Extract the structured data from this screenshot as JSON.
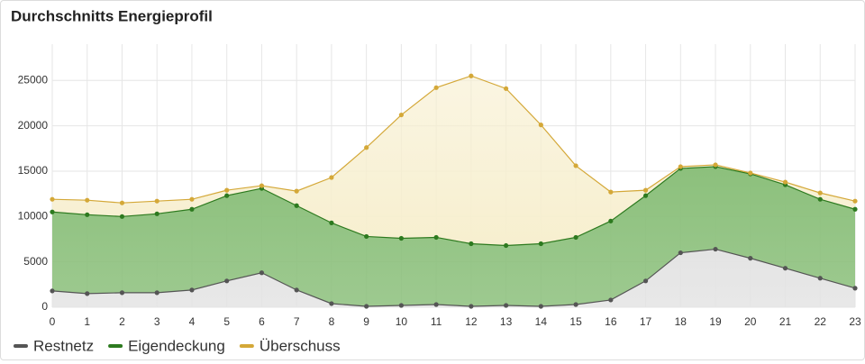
{
  "chart_data": {
    "type": "stacked-area",
    "title": "Durchschnitts Energieprofil",
    "x": [
      0,
      1,
      2,
      3,
      4,
      5,
      6,
      7,
      8,
      9,
      10,
      11,
      12,
      13,
      14,
      15,
      16,
      17,
      18,
      19,
      20,
      21,
      22,
      23
    ],
    "xlim": [
      0,
      23
    ],
    "xticks": [
      0,
      1,
      2,
      3,
      4,
      5,
      6,
      7,
      8,
      9,
      10,
      11,
      12,
      13,
      14,
      15,
      16,
      17,
      18,
      19,
      20,
      21,
      22,
      23
    ],
    "ylim": [
      0,
      29000
    ],
    "yticks": [
      0,
      5000,
      10000,
      15000,
      20000,
      25000
    ],
    "grid": true,
    "legend": "bottom-left",
    "series": [
      {
        "name": "Restnetz",
        "color": "#555555",
        "fill": "#e4e4e4",
        "values": [
          1800,
          1500,
          1600,
          1600,
          1900,
          2900,
          3800,
          1900,
          400,
          100,
          200,
          300,
          100,
          200,
          100,
          300,
          800,
          2900,
          6000,
          6400,
          5400,
          4300,
          3200,
          2100
        ]
      },
      {
        "name": "Eigendeckung",
        "color": "#2d7a1f",
        "fill": "#8cc07c",
        "values": [
          8700,
          8700,
          8400,
          8700,
          8900,
          9400,
          9300,
          9300,
          8900,
          7700,
          7400,
          7400,
          6900,
          6600,
          6900,
          7400,
          8700,
          9400,
          9300,
          9100,
          9300,
          9200,
          8700,
          8700
        ]
      },
      {
        "name": "Überschuss",
        "color": "#d4a838",
        "fill": "#f7efcf",
        "values": [
          1400,
          1600,
          1500,
          1400,
          1100,
          600,
          300,
          1600,
          5000,
          9800,
          13600,
          16500,
          18500,
          17300,
          13100,
          7900,
          3200,
          600,
          200,
          200,
          100,
          300,
          700,
          900
        ]
      }
    ]
  }
}
